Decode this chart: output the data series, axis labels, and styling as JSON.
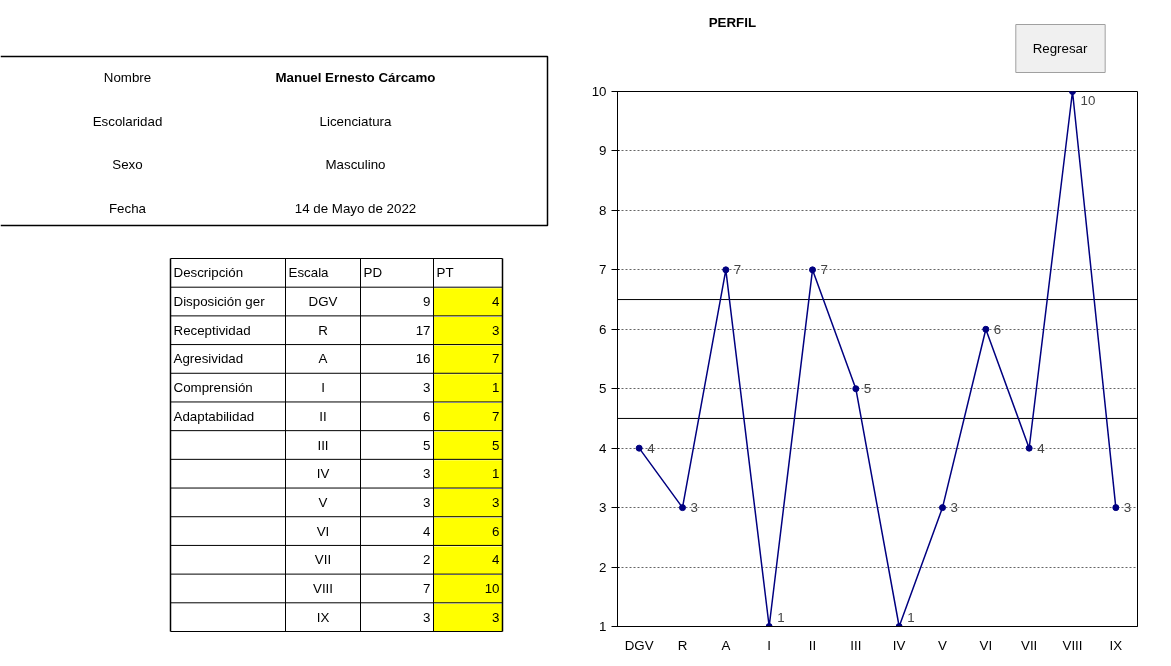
{
  "chart_data": [
    {
      "type": "other",
      "annotations": [
        "Nombre",
        "Manuel Ernesto Cárcamo",
        "Escolaridad",
        "Licenciatura",
        "Sexo",
        "Masculino",
        "Fecha",
        "14 de Mayo de 2022"
      ]
    },
    {
      "type": "other",
      "categories": [
        "Descripción",
        "Escala",
        "PD",
        "PT"
      ],
      "color": "#ffff00",
      "cell_labels": [
        [
          "Disposición ger",
          "DGV",
          "9",
          "4"
        ],
        [
          "Receptividad",
          "R",
          "17",
          "3"
        ],
        [
          "Agresividad",
          "A",
          "16",
          "7"
        ],
        [
          "Comprensión",
          "I",
          "3",
          "1"
        ],
        [
          "Adaptabilidad",
          "II",
          "6",
          "7"
        ],
        [
          null,
          "III",
          "5",
          "5"
        ],
        [
          null,
          "IV",
          "3",
          "1"
        ],
        [
          null,
          "V",
          "3",
          "3"
        ],
        [
          null,
          "VI",
          "4",
          "6"
        ],
        [
          null,
          "VII",
          "2",
          "4"
        ],
        [
          null,
          "VIII",
          "7",
          "10"
        ],
        [
          null,
          "IX",
          "3",
          "3"
        ]
      ]
    },
    {
      "type": "line",
      "title": "PERFIL",
      "annotations": [
        "Regresar"
      ],
      "categories": [
        "DGV",
        "R",
        "A",
        "I",
        "II",
        "III",
        "IV",
        "V",
        "VI",
        "VII",
        "VIII",
        "IX"
      ],
      "series": [
        {
          "color": "#000080",
          "values": [
            4,
            3,
            7,
            1,
            7,
            5,
            1,
            3,
            6,
            4,
            10,
            3
          ]
        }
      ],
      "ylim": [
        1,
        10
      ],
      "yticks": [
        1,
        2,
        3,
        4,
        5,
        6,
        7,
        8,
        9,
        10
      ],
      "grid": "y",
      "marker": "circle",
      "line_style": "solid",
      "data_labels": true,
      "ref_lines": [
        {
          "axis": "y",
          "value": 6.5,
          "color": "#000000"
        },
        {
          "axis": "y",
          "value": 4.5,
          "color": "#000000"
        }
      ]
    }
  ]
}
